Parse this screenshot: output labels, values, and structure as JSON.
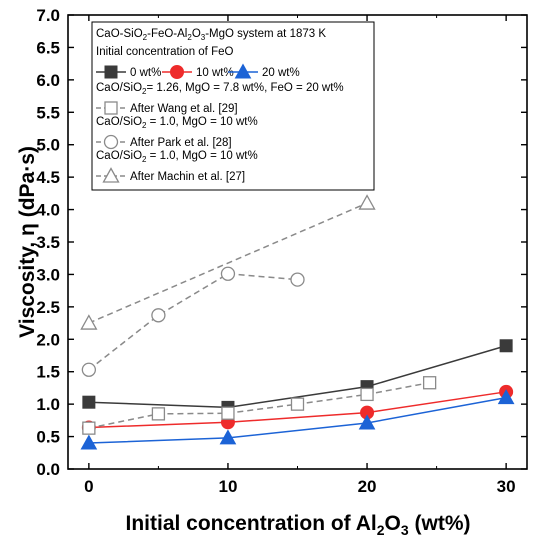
{
  "chart_data": {
    "type": "line",
    "xlabel_main": "Initial concentration of Al",
    "xlabel_sub": "2",
    "xlabel_end": "O",
    "xlabel_tail": "3",
    "xlabel_unit": " (wt%)",
    "ylabel": "Viscosity, η (dPa·s)",
    "xlim": [
      -1.5,
      31.5
    ],
    "ylim": [
      0.0,
      7.0
    ],
    "xticks": [
      0,
      10,
      20,
      30
    ],
    "yticks": [
      0.0,
      0.5,
      1.0,
      1.5,
      2.0,
      2.5,
      3.0,
      3.5,
      4.0,
      4.5,
      5.0,
      5.5,
      6.0,
      6.5,
      7.0
    ],
    "legend": {
      "placement": "top-left",
      "title": "CaO-SiO2-FeO-Al2O3-MgO system at 1873 K",
      "subtitle": "Initial concentration of FeO",
      "cond1": "CaO/SiO2= 1.26, MgO = 7.8 wt%, FeO = 20 wt%",
      "cond2": "CaO/SiO2 = 1.0, MgO = 10 wt%",
      "cond3": "CaO/SiO2 = 1.0, MgO = 10 wt%"
    },
    "series": [
      {
        "name": "0 wt%",
        "marker": "square-filled",
        "color": "#3a3a3a",
        "line": "solid",
        "x": [
          0,
          10,
          20,
          30
        ],
        "y": [
          1.03,
          0.95,
          1.27,
          1.9
        ]
      },
      {
        "name": "10 wt%",
        "marker": "circle-filled",
        "color": "#ee2b2b",
        "line": "solid",
        "x": [
          0,
          10,
          20,
          30
        ],
        "y": [
          0.64,
          0.72,
          0.87,
          1.19
        ]
      },
      {
        "name": "20 wt%",
        "marker": "triangle-filled",
        "color": "#1c63d6",
        "line": "solid",
        "x": [
          0,
          10,
          20,
          30
        ],
        "y": [
          0.4,
          0.48,
          0.71,
          1.1
        ]
      },
      {
        "name": "After Wang et al. [29]",
        "marker": "square-open",
        "color": "#8a8a8a",
        "line": "dashed",
        "x": [
          0,
          5,
          10,
          15,
          20,
          24.5
        ],
        "y": [
          0.63,
          0.85,
          0.86,
          1.0,
          1.15,
          1.33
        ]
      },
      {
        "name": "After Park et al. [28]",
        "marker": "circle-open",
        "color": "#8a8a8a",
        "line": "dashed",
        "x": [
          0,
          5,
          10,
          15
        ],
        "y": [
          1.53,
          2.37,
          3.01,
          2.92
        ]
      },
      {
        "name": "After Machin et al. [27]",
        "marker": "triangle-open",
        "color": "#8a8a8a",
        "line": "dashed",
        "x": [
          0,
          20
        ],
        "y": [
          2.25,
          4.1
        ]
      }
    ]
  }
}
